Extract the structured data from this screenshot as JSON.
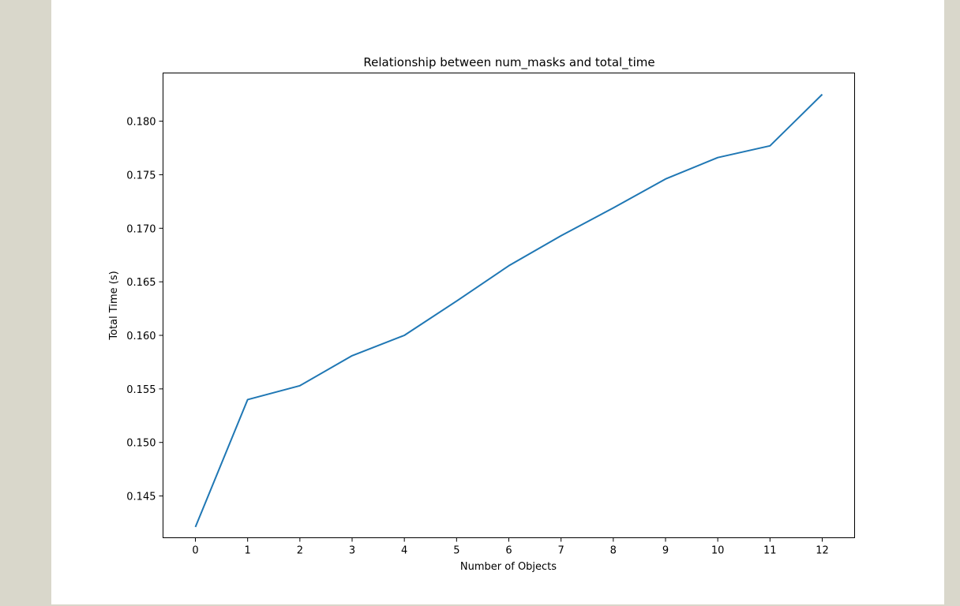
{
  "colors": {
    "page_background": "#d9d7cb",
    "figure_background": "#ffffff",
    "line": "#1f77b4",
    "axes": "#000000"
  },
  "chart_data": {
    "type": "line",
    "title": "Relationship between num_masks and total_time",
    "xlabel": "Number of Objects",
    "ylabel": "Total Time (s)",
    "x": [
      0,
      1,
      2,
      3,
      4,
      5,
      6,
      7,
      8,
      9,
      10,
      11,
      12
    ],
    "series": [
      {
        "values": [
          0.1421,
          0.154,
          0.1553,
          0.1581,
          0.16,
          0.1632,
          0.1665,
          0.1693,
          0.1719,
          0.1746,
          0.1766,
          0.1777,
          0.1825
        ]
      }
    ],
    "xticks": [
      "0",
      "1",
      "2",
      "3",
      "4",
      "5",
      "6",
      "7",
      "8",
      "9",
      "10",
      "11",
      "12"
    ],
    "yticks": [
      "0.145",
      "0.150",
      "0.155",
      "0.160",
      "0.165",
      "0.170",
      "0.175",
      "0.180"
    ],
    "xlim": [
      -0.62,
      12.62
    ],
    "ylim": [
      0.1411,
      0.1845
    ],
    "grid": false,
    "legend": "none"
  }
}
